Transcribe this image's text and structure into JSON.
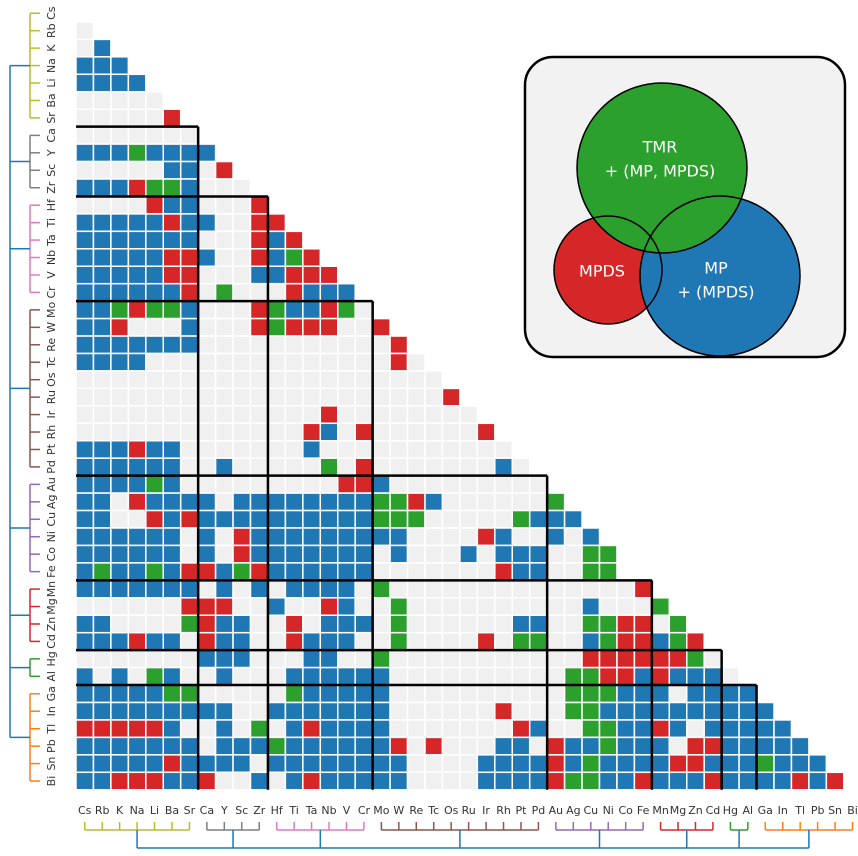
{
  "chart_data": {
    "type": "triangle-heatmap",
    "elements": [
      "Cs",
      "Rb",
      "K",
      "Na",
      "Li",
      "Ba",
      "Sr",
      "Ca",
      "Y",
      "Sc",
      "Zr",
      "Hf",
      "Ti",
      "Ta",
      "Nb",
      "V",
      "Cr",
      "Mo",
      "W",
      "Re",
      "Tc",
      "Os",
      "Ru",
      "Ir",
      "Rh",
      "Pt",
      "Pd",
      "Au",
      "Ag",
      "Cu",
      "Ni",
      "Co",
      "Fe",
      "Mn",
      "Mg",
      "Zn",
      "Cd",
      "Hg",
      "Al",
      "Ga",
      "In",
      "Tl",
      "Pb",
      "Sn",
      "Bi"
    ],
    "cells": [
      ".",
      ".b",
      "bbb",
      "bbbb",
      ".....",
      ".....r",
      ".......",
      "bbbgbbbb",
      ".....bb.r",
      "bbbrggb...",
      "....rbb...r",
      "bbbbbrbb..rr",
      "bbbbbbb...rbr",
      "bbbbbrrb..rbgr",
      "bbbbbrr...bbrrr",
      "bbbbbbr.g...rbbb",
      "bbgrggb...rgbbrg.",
      "bbr...b...rgrrr..r",
      "bbbbbbb...........r",
      "bbbb..............r.",
      ".....................",
      ".....................r",
      "..............r........",
      ".............rb.r......r",
      "bbbrbb.......b...........",
      "bbbbbb..b.....g.r.......b.",
      "bbbbgb.........rrb.........",
      "bb.rbbbb.bbbbbbbbggrb......g",
      "bb..rbrbbbbbbbbbbggg.....gbbb",
      "bbbbbb.b.rbbbbbbbbb....rb..b.b",
      "bbbbbb.b.rbbbbbbb.b...b.bbb..gg",
      "bgbbgbrrbgrbbbbbb.......rbb..gg",
      "bbbbbbb.b.b.bbbb.g..............r",
      "......rrr..b..rb..g..........b...g",
      "bb....grbb..r.bbb.g......bb..ggrr.g",
      "bbbrbb.rbb..rbbb..g....r.gg..bgrrbgr",
      ".......bbb...bb..g...........rrrrrrg.",
      "b.b.gb..b...bbbbbb..........ggrrbrbbb.",
      "bbbbbgg.....gbbbbb..........gggbbb.bbbb",
      "bbbbbbbbb..bbbbbbb......r...ggbbbbbbbbbb",
      "rrrrrb..b.g.brbbbb.......rb..ggbbrb.bbbbb",
      "bbbbbbb.bbbgbbbbbbr.r...bb.rbbgbbb.rrbbbbb",
      "bbbbbrbbbb.bbbbbbbb....bbbbrbgbbbbrrbbbgbbb",
      "bbrrrbbr..b.brbbbbb....bbbbrggbbrbbbrbbbbrbr"
    ],
    "code_colors": {
      ".": "#f0f0f0",
      "b": "#1f77b4",
      "g": "#2ca02c",
      "r": "#d62728"
    },
    "clusters": [
      {
        "size": 7,
        "color": "#bcbd22"
      },
      {
        "size": 4,
        "color": "#7f7f7f"
      },
      {
        "size": 6,
        "color": "#e377c2"
      },
      {
        "size": 10,
        "color": "#8c564b"
      },
      {
        "size": 6,
        "color": "#9467bd"
      },
      {
        "size": 4,
        "color": "#d62728"
      },
      {
        "size": 2,
        "color": "#2ca02c"
      },
      {
        "size": 6,
        "color": "#ff7f0e"
      }
    ],
    "legend": [
      {
        "lines": [
          "MPDS"
        ],
        "color": "#d62728"
      },
      {
        "lines": [
          "MP",
          "+ (MPDS)"
        ],
        "color": "#1f77b4"
      },
      {
        "lines": [
          "TMR",
          "+ (MP, MPDS)"
        ],
        "color": "#2ca02c"
      }
    ]
  }
}
